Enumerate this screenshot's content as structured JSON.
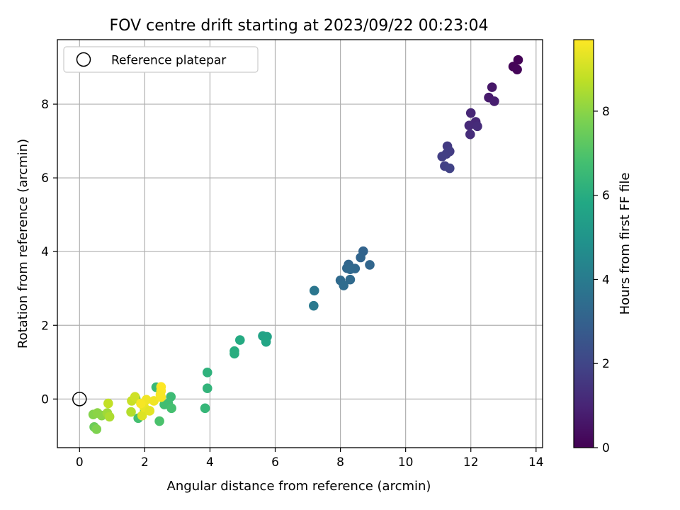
{
  "chart_data": {
    "type": "scatter",
    "title": "FOV centre drift starting at 2023/09/22 00:23:04",
    "xlabel": "Angular distance from reference (arcmin)",
    "ylabel": "Rotation from reference (arcmin)",
    "colorbar_label": "Hours from first FF file",
    "xlim": [
      -0.68,
      14.2
    ],
    "ylim": [
      -1.32,
      9.75
    ],
    "xticks": [
      0,
      2,
      4,
      6,
      8,
      10,
      12,
      14
    ],
    "yticks": [
      0,
      2,
      4,
      6,
      8
    ],
    "colorbar_range": [
      0,
      9.7
    ],
    "colorbar_ticks": [
      0,
      2,
      4,
      6,
      8
    ],
    "colormap": "viridis",
    "grid": true,
    "legend": {
      "position": "top-left",
      "entries": [
        {
          "label": "Reference platepar",
          "marker": "open-circle"
        }
      ]
    },
    "reference_point": {
      "x": 0,
      "y": 0
    },
    "points": [
      {
        "x": 13.45,
        "y": 9.2,
        "t": 0.05
      },
      {
        "x": 13.3,
        "y": 9.02,
        "t": 0.1
      },
      {
        "x": 13.42,
        "y": 8.94,
        "t": 0.15
      },
      {
        "x": 12.65,
        "y": 8.46,
        "t": 0.6
      },
      {
        "x": 12.55,
        "y": 8.18,
        "t": 0.7
      },
      {
        "x": 12.72,
        "y": 8.08,
        "t": 0.8
      },
      {
        "x": 12.0,
        "y": 7.76,
        "t": 1.05
      },
      {
        "x": 12.15,
        "y": 7.52,
        "t": 1.1
      },
      {
        "x": 11.95,
        "y": 7.42,
        "t": 1.15
      },
      {
        "x": 12.2,
        "y": 7.4,
        "t": 1.2
      },
      {
        "x": 11.98,
        "y": 7.18,
        "t": 1.25
      },
      {
        "x": 11.28,
        "y": 6.86,
        "t": 1.65
      },
      {
        "x": 11.35,
        "y": 6.72,
        "t": 1.7
      },
      {
        "x": 11.25,
        "y": 6.65,
        "t": 1.75
      },
      {
        "x": 11.12,
        "y": 6.58,
        "t": 1.8
      },
      {
        "x": 11.2,
        "y": 6.32,
        "t": 1.85
      },
      {
        "x": 11.35,
        "y": 6.26,
        "t": 1.9
      },
      {
        "x": 8.7,
        "y": 4.01,
        "t": 3.1
      },
      {
        "x": 8.62,
        "y": 3.84,
        "t": 3.15
      },
      {
        "x": 8.25,
        "y": 3.65,
        "t": 3.2
      },
      {
        "x": 8.9,
        "y": 3.64,
        "t": 3.2
      },
      {
        "x": 8.2,
        "y": 3.55,
        "t": 3.25
      },
      {
        "x": 8.45,
        "y": 3.54,
        "t": 3.25
      },
      {
        "x": 8.3,
        "y": 3.52,
        "t": 3.3
      },
      {
        "x": 8.0,
        "y": 3.22,
        "t": 3.35
      },
      {
        "x": 8.3,
        "y": 3.24,
        "t": 3.35
      },
      {
        "x": 8.1,
        "y": 3.08,
        "t": 3.4
      },
      {
        "x": 7.2,
        "y": 2.94,
        "t": 3.8
      },
      {
        "x": 7.18,
        "y": 2.53,
        "t": 3.9
      },
      {
        "x": 5.62,
        "y": 1.71,
        "t": 5.6
      },
      {
        "x": 5.75,
        "y": 1.69,
        "t": 5.6
      },
      {
        "x": 5.72,
        "y": 1.55,
        "t": 5.7
      },
      {
        "x": 4.92,
        "y": 1.6,
        "t": 5.9
      },
      {
        "x": 4.75,
        "y": 1.3,
        "t": 6.0
      },
      {
        "x": 4.75,
        "y": 1.23,
        "t": 6.05
      },
      {
        "x": 3.92,
        "y": 0.72,
        "t": 6.2
      },
      {
        "x": 3.92,
        "y": 0.29,
        "t": 6.3
      },
      {
        "x": 3.85,
        "y": -0.25,
        "t": 6.4
      },
      {
        "x": 2.35,
        "y": 0.32,
        "t": 6.5
      },
      {
        "x": 2.8,
        "y": 0.06,
        "t": 6.6
      },
      {
        "x": 2.72,
        "y": -0.12,
        "t": 6.7
      },
      {
        "x": 2.6,
        "y": -0.15,
        "t": 6.7
      },
      {
        "x": 2.82,
        "y": -0.25,
        "t": 6.8
      },
      {
        "x": 2.45,
        "y": -0.6,
        "t": 6.9
      },
      {
        "x": 1.72,
        "y": 0.02,
        "t": 6.5
      },
      {
        "x": 1.8,
        "y": -0.52,
        "t": 6.8
      },
      {
        "x": 2.0,
        "y": -0.3,
        "t": 7.0
      },
      {
        "x": 0.45,
        "y": -0.76,
        "t": 7.5
      },
      {
        "x": 0.52,
        "y": -0.82,
        "t": 7.8
      },
      {
        "x": 0.42,
        "y": -0.42,
        "t": 7.9
      },
      {
        "x": 0.55,
        "y": -0.38,
        "t": 8.0
      },
      {
        "x": 0.68,
        "y": -0.45,
        "t": 8.0
      },
      {
        "x": 0.85,
        "y": -0.38,
        "t": 8.3
      },
      {
        "x": 0.92,
        "y": -0.48,
        "t": 8.5
      },
      {
        "x": 0.88,
        "y": -0.12,
        "t": 8.8
      },
      {
        "x": 1.58,
        "y": -0.35,
        "t": 8.6
      },
      {
        "x": 1.6,
        "y": -0.05,
        "t": 8.9
      },
      {
        "x": 1.7,
        "y": 0.06,
        "t": 9.0
      },
      {
        "x": 1.92,
        "y": -0.45,
        "t": 9.2
      },
      {
        "x": 1.98,
        "y": -0.22,
        "t": 9.4
      },
      {
        "x": 2.05,
        "y": -0.02,
        "t": 9.5
      },
      {
        "x": 2.15,
        "y": -0.32,
        "t": 9.3
      },
      {
        "x": 1.88,
        "y": -0.12,
        "t": 9.6
      },
      {
        "x": 2.28,
        "y": -0.05,
        "t": 9.5
      },
      {
        "x": 2.5,
        "y": 0.05,
        "t": 9.6
      },
      {
        "x": 2.5,
        "y": 0.33,
        "t": 9.7
      },
      {
        "x": 2.5,
        "y": 0.22,
        "t": 9.7
      },
      {
        "x": 2.48,
        "y": 0.12,
        "t": 9.6
      }
    ]
  }
}
